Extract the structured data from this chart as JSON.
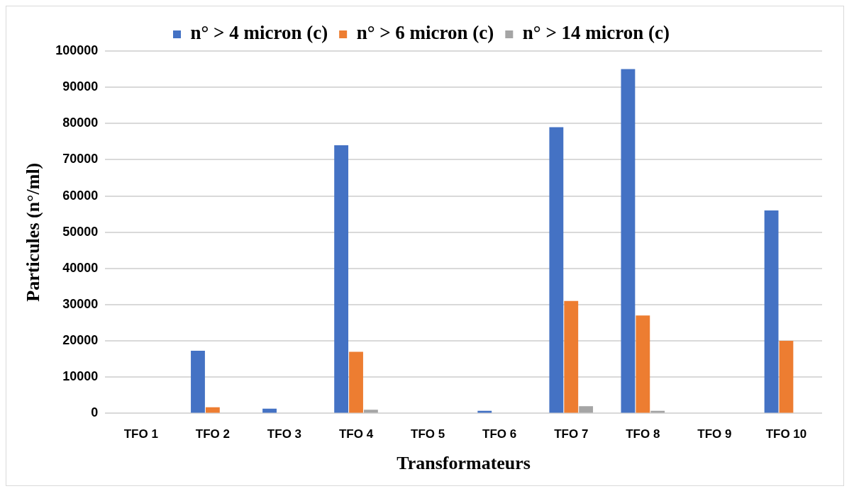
{
  "chart_data": {
    "type": "bar",
    "xlabel": "Transformateurs",
    "ylabel": "Particules (n°/ml)",
    "categories": [
      "TFO 1",
      "TFO 2",
      "TFO 3",
      "TFO 4",
      "TFO 5",
      "TFO 6",
      "TFO 7",
      "TFO 8",
      "TFO 9",
      "TFO 10"
    ],
    "series": [
      {
        "name": "n° > 4 micron (c)",
        "color": "#4472c4",
        "values": [
          0,
          17300,
          1300,
          74000,
          0,
          700,
          79000,
          95000,
          0,
          56000
        ]
      },
      {
        "name": "n° > 6 micron (c)",
        "color": "#ed7d31",
        "values": [
          0,
          1700,
          0,
          17000,
          0,
          0,
          31000,
          27000,
          0,
          20000
        ]
      },
      {
        "name": "n° > 14 micron (c)",
        "color": "#a5a5a5",
        "values": [
          0,
          0,
          0,
          1000,
          0,
          0,
          2000,
          700,
          0,
          0
        ]
      }
    ],
    "ylim": [
      0,
      100000
    ],
    "yticks": [
      0,
      10000,
      20000,
      30000,
      40000,
      50000,
      60000,
      70000,
      80000,
      90000,
      100000
    ],
    "grid": "y",
    "legend": "top"
  }
}
